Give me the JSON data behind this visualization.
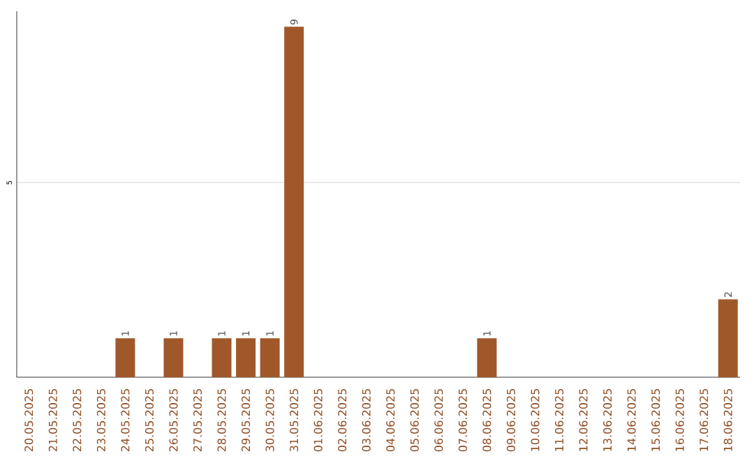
{
  "chart_data": {
    "type": "bar",
    "categories": [
      "20.05.2025",
      "21.05.2025",
      "22.05.2025",
      "23.05.2025",
      "24.05.2025",
      "25.05.2025",
      "26.05.2025",
      "27.05.2025",
      "28.05.2025",
      "29.05.2025",
      "30.05.2025",
      "31.05.2025",
      "01.06.2025",
      "02.06.2025",
      "03.06.2025",
      "04.06.2025",
      "05.06.2025",
      "06.06.2025",
      "07.06.2025",
      "08.06.2025",
      "09.06.2025",
      "10.06.2025",
      "11.06.2025",
      "12.06.2025",
      "13.06.2025",
      "14.06.2025",
      "15.06.2025",
      "16.06.2025",
      "17.06.2025",
      "18.06.2025"
    ],
    "values": [
      0,
      0,
      0,
      0,
      1,
      0,
      1,
      0,
      1,
      1,
      1,
      9,
      0,
      0,
      0,
      0,
      0,
      0,
      0,
      1,
      0,
      0,
      0,
      0,
      0,
      0,
      0,
      0,
      0,
      2
    ],
    "value_labels": [
      null,
      null,
      null,
      null,
      "1",
      null,
      "1",
      null,
      "1",
      "1",
      "1",
      "9",
      null,
      null,
      null,
      null,
      null,
      null,
      null,
      "1",
      null,
      null,
      null,
      null,
      null,
      null,
      null,
      null,
      null,
      "2"
    ],
    "color": "#a0582a",
    "ylim": [
      0,
      9.4
    ],
    "yticks": [
      5
    ],
    "grid": "y"
  }
}
